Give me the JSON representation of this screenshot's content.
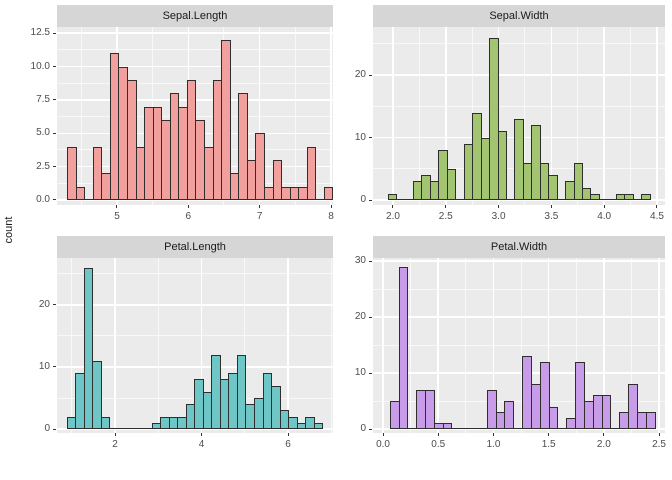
{
  "figure": {
    "ylabel": "count",
    "colors": {
      "background": "#ffffff",
      "panel_bg": "#ebebeb",
      "strip_bg": "#d6d6d6",
      "grid": "#ffffff",
      "bar_outline": "#2e2e2e",
      "axis_text": "#4d4d4d",
      "strip_text": "#1a1a1a"
    }
  },
  "chart_data": [
    {
      "type": "bar",
      "subtype": "histogram",
      "title": "Sepal.Length",
      "fill": "#f1a09d",
      "bin_start": 4.3,
      "bin_width": 0.12,
      "counts": [
        4,
        1,
        0,
        4,
        2,
        11,
        10,
        9,
        4,
        7,
        7,
        6,
        8,
        7,
        9,
        6,
        4,
        9,
        12,
        2,
        8,
        3,
        5,
        1,
        3,
        1,
        1,
        1,
        4,
        0,
        1
      ],
      "xlim": [
        4.159,
        8.028
      ],
      "ylim": [
        -0.375,
        12.96
      ],
      "x_ticks": [
        {
          "v": 5,
          "label": "5"
        },
        {
          "v": 6,
          "label": "6"
        },
        {
          "v": 7,
          "label": "7"
        },
        {
          "v": 8,
          "label": "8"
        }
      ],
      "x_minor": [
        4.5,
        5.5,
        6.5,
        7.5
      ],
      "y_ticks": [
        {
          "v": 0,
          "label": "0.0"
        },
        {
          "v": 2.5,
          "label": "2.5"
        },
        {
          "v": 5,
          "label": "5.0"
        },
        {
          "v": 7.5,
          "label": "7.5"
        },
        {
          "v": 10,
          "label": "10.0"
        },
        {
          "v": 12.5,
          "label": "12.5"
        }
      ],
      "y_minor": [
        1.25,
        3.75,
        6.25,
        8.75,
        11.25
      ]
    },
    {
      "type": "bar",
      "subtype": "histogram",
      "title": "Sepal.Width",
      "fill": "#a3c572",
      "bin_start": 1.95,
      "bin_width": 0.08,
      "counts": [
        1,
        0,
        0,
        3,
        4,
        3,
        8,
        5,
        0,
        9,
        14,
        10,
        26,
        11,
        0,
        13,
        6,
        12,
        6,
        4,
        0,
        3,
        6,
        2,
        1,
        0,
        0,
        1,
        1,
        0,
        1
      ],
      "xlim": [
        1.811,
        4.576
      ],
      "ylim": [
        -0.8,
        27.68
      ],
      "x_ticks": [
        {
          "v": 2.0,
          "label": "2.0"
        },
        {
          "v": 2.5,
          "label": "2.5"
        },
        {
          "v": 3.0,
          "label": "3.0"
        },
        {
          "v": 3.5,
          "label": "3.5"
        },
        {
          "v": 4.0,
          "label": "4.0"
        },
        {
          "v": 4.5,
          "label": "4.5"
        }
      ],
      "x_minor": [
        2.25,
        2.75,
        3.25,
        3.75,
        4.25
      ],
      "y_ticks": [
        {
          "v": 0,
          "label": "0"
        },
        {
          "v": 10,
          "label": "10"
        },
        {
          "v": 20,
          "label": "20"
        }
      ],
      "y_minor": [
        5,
        15,
        25
      ]
    },
    {
      "type": "bar",
      "subtype": "histogram",
      "title": "Petal.Length",
      "fill": "#6fc6c6",
      "bin_start": 0.88,
      "bin_width": 0.197,
      "counts": [
        2,
        9,
        26,
        11,
        2,
        0,
        0,
        0,
        0,
        0,
        1,
        2,
        2,
        2,
        4,
        8,
        6,
        12,
        8,
        9,
        12,
        4,
        5,
        9,
        7,
        3,
        2,
        1,
        2,
        1
      ],
      "xlim": [
        0.659,
        7.04
      ],
      "ylim": [
        -0.645,
        27.58
      ],
      "x_ticks": [
        {
          "v": 2,
          "label": "2"
        },
        {
          "v": 4,
          "label": "4"
        },
        {
          "v": 6,
          "label": "6"
        }
      ],
      "x_minor": [
        1,
        3,
        5,
        7
      ],
      "y_ticks": [
        {
          "v": 0,
          "label": "0"
        },
        {
          "v": 10,
          "label": "10"
        },
        {
          "v": 20,
          "label": "20"
        }
      ],
      "y_minor": [
        5,
        15,
        25
      ]
    },
    {
      "type": "bar",
      "subtype": "histogram",
      "title": "Petal.Width",
      "fill": "#c99ce9",
      "bin_start": 0.06,
      "bin_width": 0.08,
      "counts": [
        5,
        29,
        0,
        7,
        7,
        1,
        1,
        0,
        0,
        0,
        0,
        7,
        3,
        5,
        0,
        13,
        8,
        12,
        4,
        0,
        2,
        12,
        5,
        6,
        6,
        0,
        3,
        8,
        3,
        3
      ],
      "xlim": [
        -0.091,
        2.554
      ],
      "ylim": [
        -0.714,
        30.54
      ],
      "x_ticks": [
        {
          "v": 0.0,
          "label": "0.0"
        },
        {
          "v": 0.5,
          "label": "0.5"
        },
        {
          "v": 1.0,
          "label": "1.0"
        },
        {
          "v": 1.5,
          "label": "1.5"
        },
        {
          "v": 2.0,
          "label": "2.0"
        },
        {
          "v": 2.5,
          "label": "2.5"
        }
      ],
      "x_minor": [
        0.25,
        0.75,
        1.25,
        1.75,
        2.25
      ],
      "y_ticks": [
        {
          "v": 0,
          "label": "0"
        },
        {
          "v": 10,
          "label": "10"
        },
        {
          "v": 20,
          "label": "20"
        },
        {
          "v": 30,
          "label": "30"
        }
      ],
      "y_minor": [
        5,
        15,
        25
      ]
    }
  ]
}
